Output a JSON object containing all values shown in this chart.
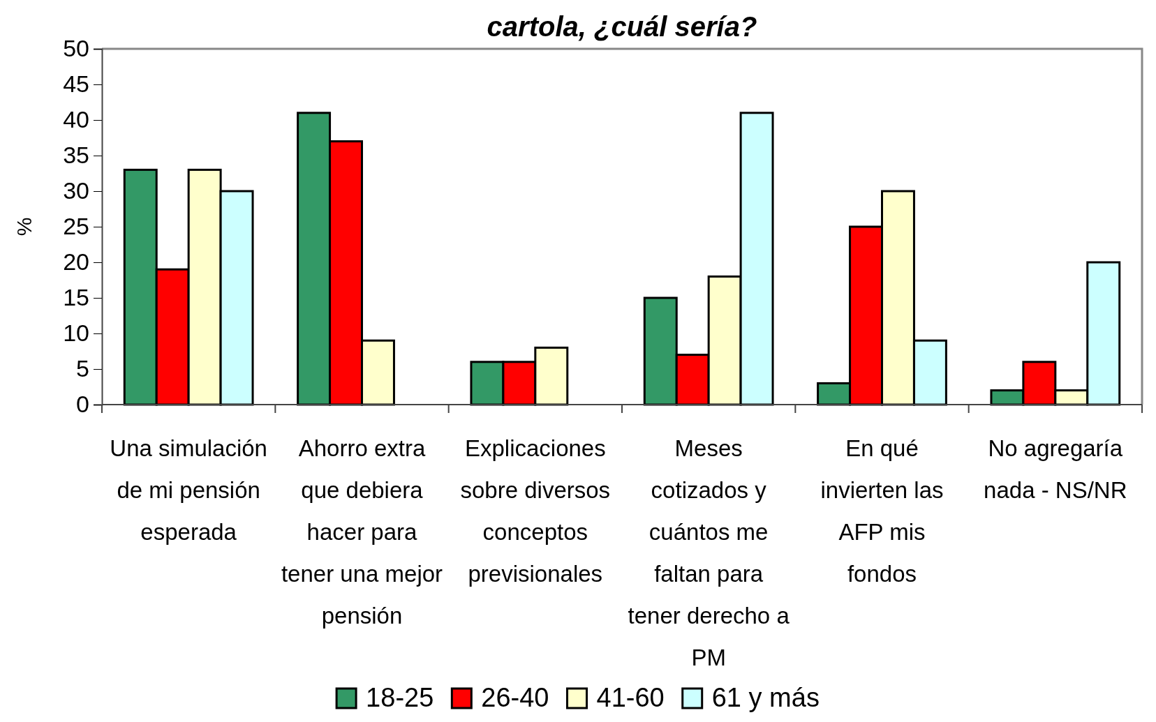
{
  "chart_data": {
    "type": "bar",
    "title": "cartola, ¿cuál sería?",
    "ylabel": "%",
    "categories": [
      "Una simulación de mi pensión esperada",
      "Ahorro extra que debiera hacer para tener una mejor pensión",
      "Explicaciones sobre diversos conceptos previsionales",
      "Meses cotizados y cuántos me faltan para tener derecho a PM",
      "En qué invierten las AFP mis fondos",
      "No agregaría nada - NS/NR"
    ],
    "series": [
      {
        "name": "18-25",
        "color": "#339966",
        "values": [
          33,
          41,
          6,
          15,
          3,
          2
        ]
      },
      {
        "name": "26-40",
        "color": "#ff0000",
        "values": [
          19,
          37,
          6,
          7,
          25,
          6
        ]
      },
      {
        "name": "41-60",
        "color": "#ffffcc",
        "values": [
          33,
          9,
          8,
          18,
          30,
          2
        ]
      },
      {
        "name": "61 y más",
        "color": "#ccffff",
        "values": [
          30,
          null,
          null,
          41,
          9,
          20
        ]
      }
    ],
    "ylim": [
      0,
      50
    ],
    "yticks": [
      0,
      5,
      10,
      15,
      20,
      25,
      30,
      35,
      40,
      45,
      50
    ],
    "grid": false,
    "legend": "bottom"
  }
}
